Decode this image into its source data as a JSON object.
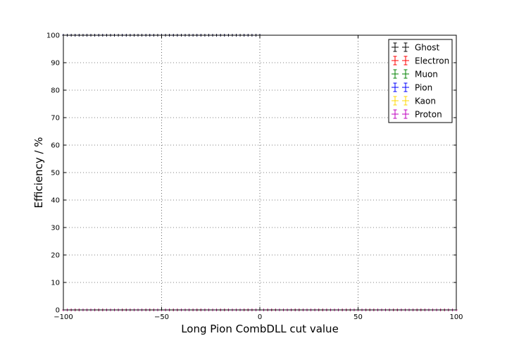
{
  "chart_data": {
    "type": "scatter",
    "xlabel": "Long Pion CombDLL cut value",
    "ylabel": "Efficiency / %",
    "xlim": [
      -100,
      100
    ],
    "ylim": [
      0,
      100
    ],
    "x_ticks": [
      -100,
      -50,
      0,
      50,
      100
    ],
    "x_tick_labels": [
      "−100",
      "−50",
      "0",
      "50",
      "100"
    ],
    "y_ticks": [
      0,
      10,
      20,
      30,
      40,
      50,
      60,
      70,
      80,
      90,
      100
    ],
    "y_tick_labels": [
      "0",
      "10",
      "20",
      "30",
      "40",
      "50",
      "60",
      "70",
      "80",
      "90",
      "100"
    ],
    "grid": true,
    "legend_position": "top-right",
    "marker": "errorbar-cross",
    "series": [
      {
        "name": "Ghost",
        "color": "#000000",
        "x_range": [
          -100,
          0
        ],
        "x_step": 2,
        "y": 100
      },
      {
        "name": "Electron",
        "color": "#ff0000",
        "x_range": [
          -100,
          100
        ],
        "x_step": 2,
        "y": 0
      },
      {
        "name": "Muon",
        "color": "#008000",
        "x_range": [
          -100,
          100
        ],
        "x_step": 2,
        "y": 0
      },
      {
        "name": "Pion",
        "color": "#0000ff",
        "x_range": [
          -100,
          0
        ],
        "x_step": 2,
        "y": 100
      },
      {
        "name": "Kaon",
        "color": "#ffd700",
        "x_range": [
          -100,
          100
        ],
        "x_step": 2,
        "y": 0
      },
      {
        "name": "Proton",
        "color": "#bf00bf",
        "x_range": [
          -100,
          100
        ],
        "x_step": 2,
        "y": 0
      }
    ]
  }
}
